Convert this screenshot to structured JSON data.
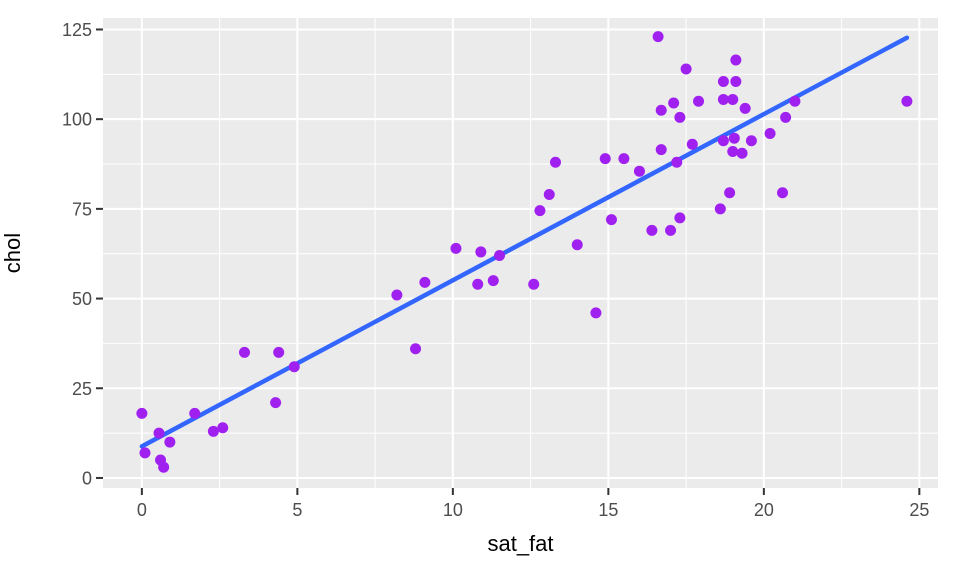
{
  "chart_data": {
    "type": "scatter",
    "title": "",
    "xlabel": "sat_fat",
    "ylabel": "chol",
    "x_ticks": [
      0,
      5,
      10,
      15,
      20,
      25
    ],
    "y_ticks": [
      0,
      25,
      50,
      75,
      100,
      125
    ],
    "x_minor_ticks": [
      2.5,
      7.5,
      12.5,
      17.5,
      22.5
    ],
    "y_minor_ticks": [
      12.5,
      37.5,
      62.5,
      87.5,
      112.5
    ],
    "xlim": [
      -1.25,
      25.6
    ],
    "ylim": [
      -2.8,
      128.2
    ],
    "grid": "white major and minor gridlines on gray panel",
    "legend": "none",
    "points": [
      [
        0,
        18
      ],
      [
        0.1,
        7
      ],
      [
        0.55,
        12.5
      ],
      [
        0.6,
        5
      ],
      [
        0.7,
        3
      ],
      [
        0.9,
        10
      ],
      [
        1.7,
        18
      ],
      [
        2.3,
        13
      ],
      [
        2.6,
        14
      ],
      [
        3.3,
        35
      ],
      [
        4.3,
        21
      ],
      [
        4.4,
        35
      ],
      [
        4.9,
        31
      ],
      [
        8.2,
        51
      ],
      [
        8.8,
        36
      ],
      [
        9.1,
        54.5
      ],
      [
        10.1,
        64
      ],
      [
        10.8,
        54
      ],
      [
        10.9,
        63
      ],
      [
        11.3,
        55
      ],
      [
        11.5,
        62
      ],
      [
        12.6,
        54
      ],
      [
        12.8,
        74.5
      ],
      [
        13.1,
        79
      ],
      [
        13.3,
        88
      ],
      [
        14,
        65
      ],
      [
        14.6,
        46
      ],
      [
        14.9,
        89
      ],
      [
        15.1,
        72
      ],
      [
        15.5,
        89
      ],
      [
        16,
        85.5
      ],
      [
        16.4,
        69
      ],
      [
        16.6,
        123
      ],
      [
        16.7,
        91.5
      ],
      [
        16.7,
        102.5
      ],
      [
        17,
        69
      ],
      [
        17.1,
        104.5
      ],
      [
        17.2,
        88
      ],
      [
        17.3,
        72.5
      ],
      [
        17.3,
        100.5
      ],
      [
        17.5,
        114
      ],
      [
        17.7,
        93
      ],
      [
        17.9,
        105
      ],
      [
        18.6,
        75
      ],
      [
        18.7,
        94
      ],
      [
        18.7,
        105.5
      ],
      [
        18.7,
        110.5
      ],
      [
        18.9,
        79.5
      ],
      [
        19,
        91
      ],
      [
        19,
        105.5
      ],
      [
        19.05,
        94.7
      ],
      [
        19.1,
        110.5
      ],
      [
        19.1,
        116.5
      ],
      [
        19.3,
        90.5
      ],
      [
        19.4,
        103
      ],
      [
        19.6,
        94
      ],
      [
        20.2,
        96
      ],
      [
        20.6,
        79.5
      ],
      [
        20.7,
        100.5
      ],
      [
        21,
        105
      ],
      [
        24.6,
        105
      ]
    ],
    "regression_line": {
      "method": "lm",
      "x1": 0,
      "y1": 8.8,
      "x2": 24.6,
      "y2": 122.7
    },
    "colors": {
      "point": "#A020F0",
      "line": "#3366FF",
      "panel_bg": "#EBEBEB",
      "grid": "#FFFFFF",
      "tick_label": "#4D4D4D",
      "tick_mark": "#333333",
      "axis_title": "#000000",
      "figure_bg": "#FFFFFF"
    }
  }
}
